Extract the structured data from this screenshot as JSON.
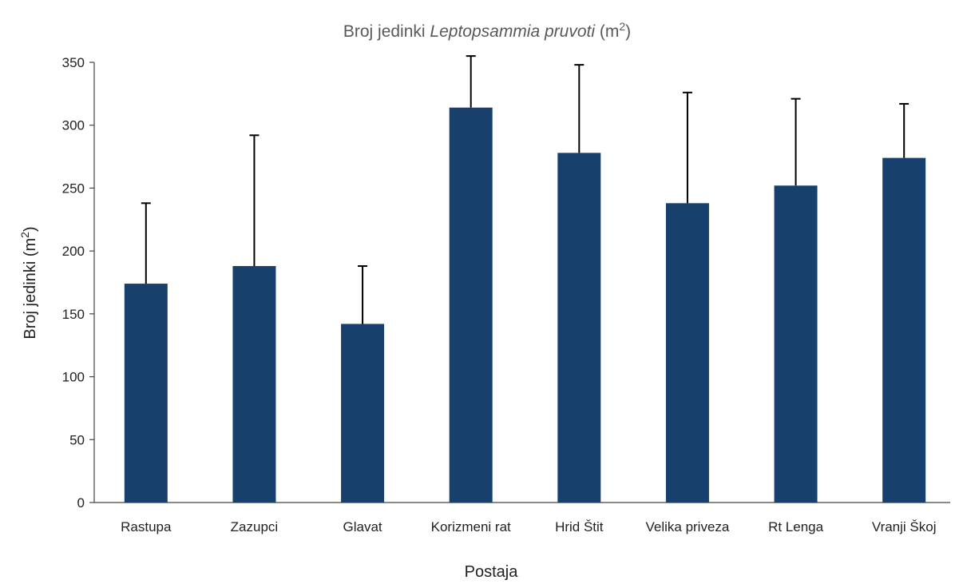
{
  "chart_data": {
    "type": "bar",
    "title_parts": [
      "Broj jedinki",
      "Leptopsammia pruvoti",
      "(m",
      "2",
      ")"
    ],
    "x_label": "Postaja",
    "y_label_parts": [
      "Broj jedinki (m",
      "2",
      ")"
    ],
    "categories": [
      "Rastupa",
      "Zazupci",
      "Glavat",
      "Korizmeni rat",
      "Hrid Štit",
      "Velika priveza",
      "Rt Lenga",
      "Vranji Škoj"
    ],
    "values": [
      174,
      188,
      142,
      314,
      278,
      238,
      252,
      274
    ],
    "errors": [
      64,
      104,
      46,
      41,
      70,
      88,
      69,
      43
    ],
    "color": "#17406d",
    "ylim": [
      0,
      350
    ],
    "yticks": [
      0,
      50,
      100,
      150,
      200,
      250,
      300,
      350
    ],
    "grid": false
  }
}
